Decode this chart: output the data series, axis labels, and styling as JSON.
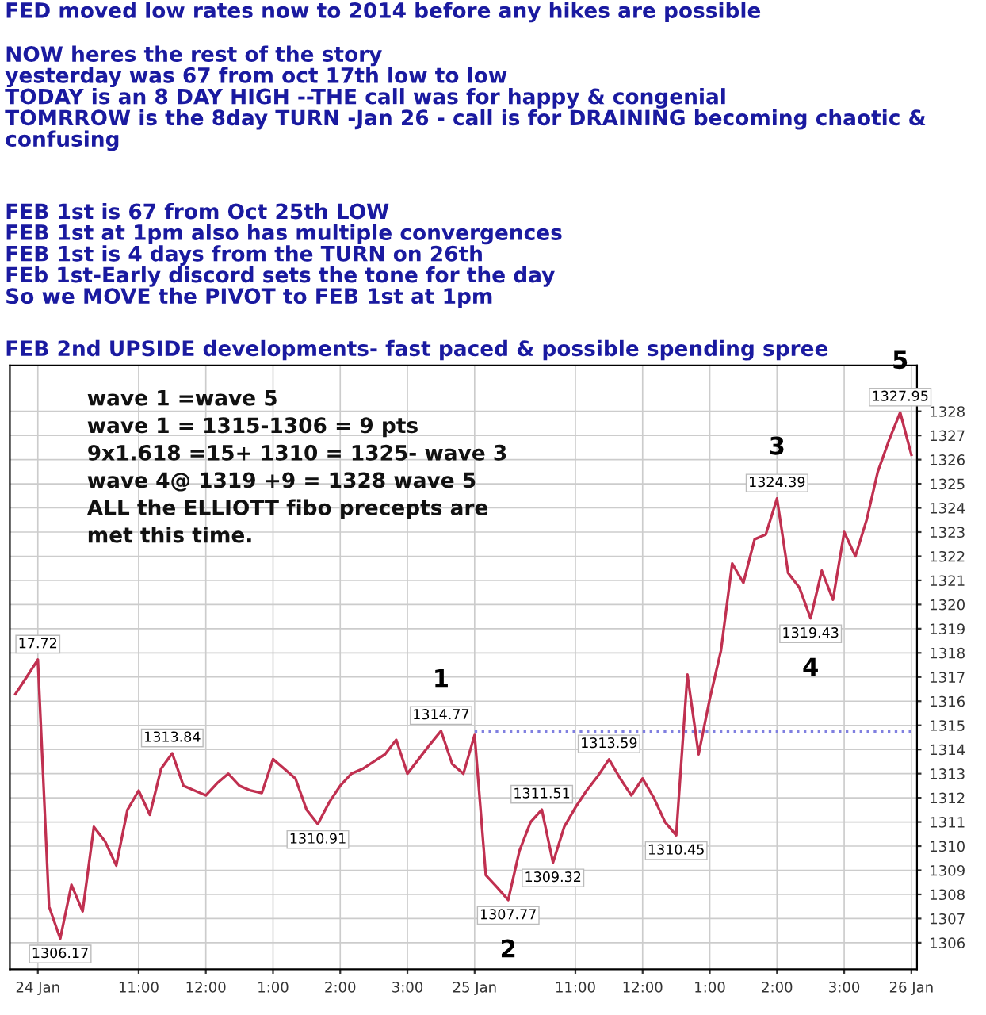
{
  "chart_data": {
    "type": "line",
    "title": "FED moved low rates now to 2014 before any hikes are possible",
    "annotations": [
      "NOW heres the rest of the story\nyesterday was 67 from oct 17th low to low\nTODAY is an 8 DAY HIGH --THE call was for happy & congenial\nTOMRROW is the 8day TURN -Jan 26 - call is for DRAINING becoming chaotic &\nconfusing",
      "FEB 1st is 67 from Oct 25th LOW\nFEB 1st at 1pm also has multiple convergences\nFEB 1st is 4 days from the TURN on 26th\nFEb 1st-Early discord sets the tone for the day\nSo we MOVE the PIVOT to FEB 1st at 1pm",
      "FEB 2nd UPSIDE developments- fast paced & possible spending spree",
      "wave 1 =wave 5\nwave 1 = 1315-1306 = 9 pts\n9x1.618 =15+ 1310 = 1325- wave 3\nwave 4@ 1319 +9 = 1328 wave 5\nALL the ELLIOTT fibo precepts are\nmet this time.",
      {
        "text": "17.72",
        "y": 1317.72
      },
      {
        "text": "1306.17",
        "y": 1306.17
      },
      {
        "text": "1313.84",
        "y": 1313.84
      },
      {
        "text": "1310.91",
        "y": 1310.91
      },
      {
        "text": "1314.77",
        "y": 1314.77
      },
      {
        "text": "1307.77",
        "y": 1307.77
      },
      {
        "text": "1311.51",
        "y": 1311.51
      },
      {
        "text": "1309.32",
        "y": 1309.32
      },
      {
        "text": "1313.59",
        "y": 1313.59
      },
      {
        "text": "1310.45",
        "y": 1310.45
      },
      {
        "text": "1324.39",
        "y": 1324.39
      },
      {
        "text": "1319.43",
        "y": 1319.43
      },
      {
        "text": "1327.95",
        "y": 1327.95
      },
      {
        "text": "1",
        "y": 1314.77
      },
      {
        "text": "2",
        "y": 1307.77
      },
      {
        "text": "3",
        "y": 1324.39
      },
      {
        "text": "4",
        "y": 1319.43
      },
      {
        "text": "5",
        "y": 1327.95
      }
    ],
    "categories": [
      null,
      null,
      "24 Jan",
      null,
      null,
      null,
      null,
      null,
      null,
      null,
      null,
      "11:00",
      null,
      null,
      null,
      null,
      null,
      "12:00",
      null,
      null,
      null,
      null,
      null,
      "1:00",
      null,
      null,
      null,
      null,
      null,
      "2:00",
      null,
      null,
      null,
      null,
      null,
      "3:00",
      null,
      null,
      null,
      null,
      null,
      "25 Jan",
      null,
      null,
      null,
      null,
      null,
      null,
      null,
      null,
      "11:00",
      null,
      null,
      null,
      null,
      null,
      "12:00",
      null,
      null,
      null,
      null,
      null,
      "1:00",
      null,
      null,
      null,
      null,
      null,
      "2:00",
      null,
      null,
      null,
      null,
      null,
      "3:00",
      null,
      null,
      null,
      null,
      null,
      "26 Jan"
    ],
    "series": [
      {
        "color": "#c03050",
        "values": [
          1316.3,
          1317.0,
          1317.72,
          1307.5,
          1306.17,
          1308.4,
          1307.3,
          1310.8,
          1310.2,
          1309.2,
          1311.5,
          1312.3,
          1311.3,
          1313.2,
          1313.84,
          1312.5,
          1312.3,
          1312.1,
          1312.6,
          1313.0,
          1312.5,
          1312.3,
          1312.2,
          1313.6,
          1313.2,
          1312.8,
          1311.5,
          1310.91,
          1311.8,
          1312.5,
          1313.0,
          1313.2,
          1313.5,
          1313.8,
          1314.4,
          1313.0,
          1313.6,
          1314.2,
          1314.77,
          1313.4,
          1313.0,
          1314.6,
          1308.8,
          1308.3,
          1307.77,
          1309.8,
          1311.0,
          1311.51,
          1309.32,
          1310.8,
          1311.6,
          1312.3,
          1312.9,
          1313.59,
          1312.8,
          1312.1,
          1312.8,
          1312.0,
          1311.0,
          1310.45,
          1317.1,
          1313.8,
          1316.1,
          1318.1,
          1321.7,
          1320.9,
          1322.7,
          1322.9,
          1324.39,
          1321.3,
          1320.7,
          1319.43,
          1321.4,
          1320.2,
          1323.0,
          1322.0,
          1323.5,
          1325.5,
          1326.8,
          1327.95,
          1326.2
        ]
      },
      {
        "color": "#8080e0",
        "line_style": "dotted",
        "values": [
          null,
          null,
          null,
          null,
          null,
          null,
          null,
          null,
          null,
          null,
          null,
          null,
          null,
          null,
          null,
          null,
          null,
          null,
          null,
          null,
          null,
          null,
          null,
          null,
          null,
          null,
          null,
          null,
          null,
          null,
          null,
          null,
          null,
          null,
          null,
          null,
          null,
          null,
          null,
          null,
          null,
          1314.75,
          1314.75,
          1314.75,
          1314.75,
          1314.75,
          1314.75,
          1314.75,
          1314.75,
          1314.75,
          1314.75,
          1314.75,
          1314.75,
          1314.75,
          1314.75,
          1314.75,
          1314.75,
          1314.75,
          1314.75,
          1314.75,
          1314.75,
          1314.75,
          1314.75,
          1314.75,
          1314.75,
          1314.75,
          1314.75,
          1314.75,
          1314.75,
          1314.75,
          1314.75,
          1314.75,
          1314.75,
          1314.75,
          1314.75,
          1314.75,
          1314.75,
          1314.75,
          1314.75,
          1314.75,
          1314.75
        ]
      }
    ],
    "ylim": [
      1304.9,
      1329.9
    ],
    "yticks": [
      1306,
      1307,
      1308,
      1309,
      1310,
      1311,
      1312,
      1313,
      1314,
      1315,
      1316,
      1317,
      1318,
      1319,
      1320,
      1321,
      1322,
      1323,
      1324,
      1325,
      1326,
      1327,
      1328
    ],
    "grid": true,
    "line_style": "solid"
  }
}
